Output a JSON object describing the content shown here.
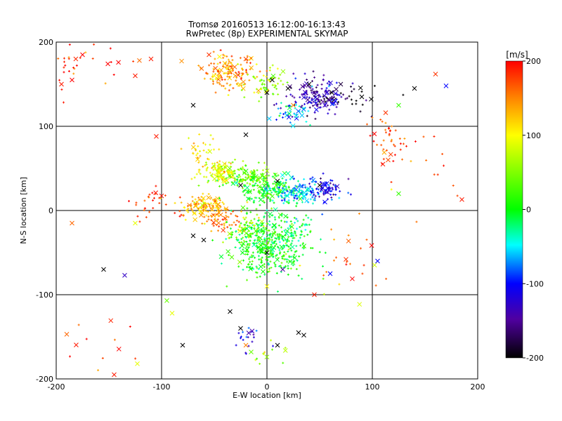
{
  "chart_data": {
    "type": "scatter",
    "title": "Tromsø 20160513  16:12:00-16:13:43",
    "subtitle": "RwPretec (8p) EXPERIMENTAL SKYMAP",
    "xlabel": "E-W location [km]",
    "ylabel": "N-S location [km]",
    "xlim": [
      -200,
      200
    ],
    "ylim": [
      -200,
      200
    ],
    "xticks": [
      -200,
      -100,
      0,
      100,
      200
    ],
    "yticks": [
      -200,
      -100,
      0,
      100,
      200
    ],
    "grid": true,
    "colorbar": {
      "label": "[m/s]",
      "range": [
        -200,
        200
      ],
      "ticks": [
        200,
        100,
        0,
        -100,
        -200
      ],
      "colormap": "rainbow: black(-200) - purple - blue - cyan - green(0) - yellow - orange - red(200)"
    },
    "clusters": [
      {
        "x": -35,
        "y": 165,
        "w": 22,
        "h": 18,
        "n": 150,
        "v": 140
      },
      {
        "x": 0,
        "y": 150,
        "w": 18,
        "h": 14,
        "n": 60,
        "v": 60
      },
      {
        "x": 45,
        "y": 135,
        "w": 25,
        "h": 18,
        "n": 160,
        "v": -140
      },
      {
        "x": 25,
        "y": 118,
        "w": 20,
        "h": 10,
        "n": 40,
        "v": -60
      },
      {
        "x": 80,
        "y": 135,
        "w": 40,
        "h": 15,
        "n": 25,
        "v": -200
      },
      {
        "x": 115,
        "y": 85,
        "w": 15,
        "h": 22,
        "n": 40,
        "v": 170
      },
      {
        "x": -190,
        "y": 165,
        "w": 15,
        "h": 25,
        "n": 20,
        "v": 190
      },
      {
        "x": -150,
        "y": 180,
        "w": 35,
        "h": 15,
        "n": 12,
        "v": 180
      },
      {
        "x": -60,
        "y": 70,
        "w": 15,
        "h": 15,
        "n": 30,
        "v": 110
      },
      {
        "x": -45,
        "y": 45,
        "w": 15,
        "h": 12,
        "n": 120,
        "v": 90
      },
      {
        "x": -20,
        "y": 40,
        "w": 18,
        "h": 12,
        "n": 120,
        "v": 40
      },
      {
        "x": 0,
        "y": 25,
        "w": 25,
        "h": 15,
        "n": 160,
        "v": 0
      },
      {
        "x": 30,
        "y": 22,
        "w": 20,
        "h": 12,
        "n": 120,
        "v": -60
      },
      {
        "x": 55,
        "y": 25,
        "w": 15,
        "h": 12,
        "n": 80,
        "v": -110
      },
      {
        "x": -60,
        "y": 5,
        "w": 18,
        "h": 10,
        "n": 120,
        "v": 130
      },
      {
        "x": -45,
        "y": -10,
        "w": 15,
        "h": 12,
        "n": 60,
        "v": 150
      },
      {
        "x": -110,
        "y": 10,
        "w": 20,
        "h": 15,
        "n": 30,
        "v": 180
      },
      {
        "x": 0,
        "y": -40,
        "w": 28,
        "h": 30,
        "n": 420,
        "v": 5
      },
      {
        "x": -20,
        "y": -20,
        "w": 15,
        "h": 15,
        "n": 40,
        "v": 70
      },
      {
        "x": 30,
        "y": -30,
        "w": 15,
        "h": 20,
        "n": 60,
        "v": -20
      },
      {
        "x": -20,
        "y": -150,
        "w": 10,
        "h": 20,
        "n": 20,
        "v": -110
      },
      {
        "x": -150,
        "y": -150,
        "w": 40,
        "h": 30,
        "n": 12,
        "v": 180
      },
      {
        "x": 80,
        "y": -60,
        "w": 40,
        "h": 50,
        "n": 25,
        "v": 150
      },
      {
        "x": 150,
        "y": 40,
        "w": 40,
        "h": 60,
        "n": 15,
        "v": 170
      },
      {
        "x": 0,
        "y": -170,
        "w": 15,
        "h": 15,
        "n": 12,
        "v": 50
      }
    ],
    "crosses": [
      {
        "x": -55,
        "y": 185,
        "v": 180
      },
      {
        "x": -40,
        "y": 175,
        "v": 120
      },
      {
        "x": -30,
        "y": 160,
        "v": 140
      },
      {
        "x": -50,
        "y": 160,
        "v": 100
      },
      {
        "x": -20,
        "y": 180,
        "v": 170
      },
      {
        "x": 0,
        "y": 140,
        "v": -200
      },
      {
        "x": 5,
        "y": 155,
        "v": -200
      },
      {
        "x": 20,
        "y": 145,
        "v": -200
      },
      {
        "x": 45,
        "y": 140,
        "v": -160
      },
      {
        "x": 55,
        "y": 125,
        "v": -130
      },
      {
        "x": 40,
        "y": 150,
        "v": -200
      },
      {
        "x": 70,
        "y": 150,
        "v": -180
      },
      {
        "x": 65,
        "y": 130,
        "v": -100
      },
      {
        "x": 90,
        "y": 135,
        "v": -200
      },
      {
        "x": 140,
        "y": 145,
        "v": -200
      },
      {
        "x": 170,
        "y": 148,
        "v": -100
      },
      {
        "x": 160,
        "y": 162,
        "v": 180
      },
      {
        "x": -70,
        "y": 125,
        "v": -200
      },
      {
        "x": -110,
        "y": 180,
        "v": 190
      },
      {
        "x": -175,
        "y": 185,
        "v": 200
      },
      {
        "x": -185,
        "y": 155,
        "v": 200
      },
      {
        "x": -195,
        "y": 150,
        "v": 190
      },
      {
        "x": -125,
        "y": 160,
        "v": 190
      },
      {
        "x": 125,
        "y": 125,
        "v": 20
      },
      {
        "x": 110,
        "y": 55,
        "v": 190
      },
      {
        "x": 115,
        "y": 60,
        "v": 170
      },
      {
        "x": -105,
        "y": 88,
        "v": 190
      },
      {
        "x": -45,
        "y": 40,
        "v": 90
      },
      {
        "x": -35,
        "y": 45,
        "v": 100
      },
      {
        "x": 10,
        "y": 35,
        "v": -200
      },
      {
        "x": 50,
        "y": 30,
        "v": -200
      },
      {
        "x": -25,
        "y": 30,
        "v": -200
      },
      {
        "x": 55,
        "y": 10,
        "v": -100
      },
      {
        "x": -70,
        "y": -30,
        "v": -200
      },
      {
        "x": -60,
        "y": -35,
        "v": -200
      },
      {
        "x": 0,
        "y": -50,
        "v": -200
      },
      {
        "x": 15,
        "y": -70,
        "v": -150
      },
      {
        "x": 60,
        "y": -75,
        "v": -100
      },
      {
        "x": 75,
        "y": -58,
        "v": 180
      },
      {
        "x": 45,
        "y": -100,
        "v": 190
      },
      {
        "x": -35,
        "y": -120,
        "v": -200
      },
      {
        "x": -25,
        "y": -140,
        "v": -200
      },
      {
        "x": -20,
        "y": -160,
        "v": 150
      },
      {
        "x": -15,
        "y": -168,
        "v": 40
      },
      {
        "x": 10,
        "y": -160,
        "v": -200
      },
      {
        "x": 30,
        "y": -145,
        "v": -200
      },
      {
        "x": 35,
        "y": -148,
        "v": -200
      },
      {
        "x": -155,
        "y": -70,
        "v": -200
      },
      {
        "x": -135,
        "y": -77,
        "v": -130
      },
      {
        "x": -185,
        "y": -15,
        "v": 160
      },
      {
        "x": -125,
        "y": -15,
        "v": 90
      },
      {
        "x": -145,
        "y": -195,
        "v": 190
      },
      {
        "x": -190,
        "y": -147,
        "v": 160
      },
      {
        "x": -123,
        "y": -182,
        "v": 90
      },
      {
        "x": -90,
        "y": -122,
        "v": 90
      },
      {
        "x": -80,
        "y": -160,
        "v": -200
      },
      {
        "x": -95,
        "y": -107,
        "v": 40
      },
      {
        "x": 185,
        "y": 13,
        "v": 190
      },
      {
        "x": 125,
        "y": 20,
        "v": 20
      },
      {
        "x": 105,
        "y": -60,
        "v": -100
      },
      {
        "x": 25,
        "y": 125,
        "v": 150
      },
      {
        "x": -20,
        "y": 90,
        "v": -200
      },
      {
        "x": 0,
        "y": -90,
        "v": 100
      }
    ]
  }
}
